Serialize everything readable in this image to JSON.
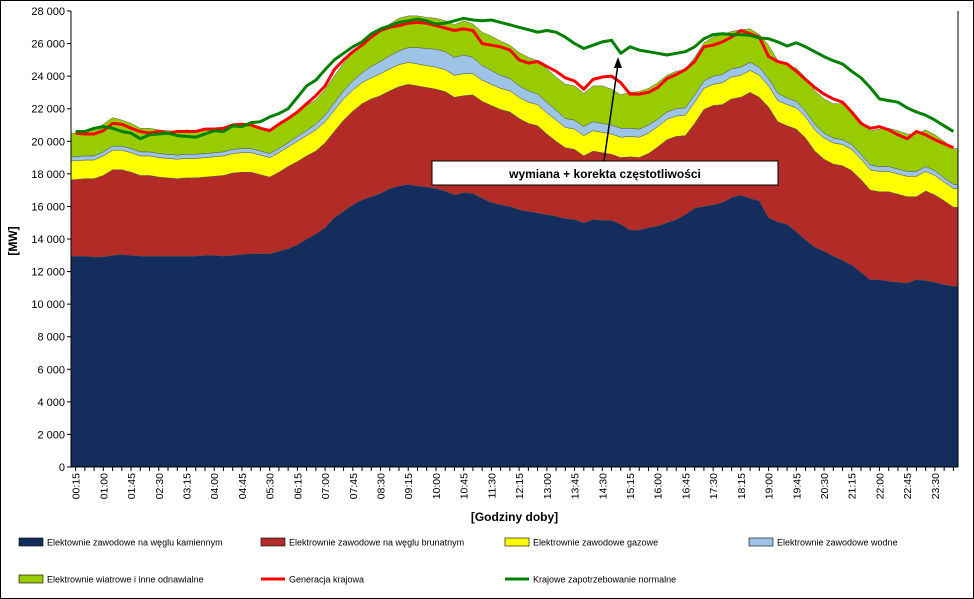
{
  "chart_data": {
    "type": "area",
    "xlabel": "[Godziny doby]",
    "ylabel": "[MW]",
    "ylim": [
      0,
      28000
    ],
    "yticks": [
      "0",
      "2 000",
      "4 000",
      "6 000",
      "8 000",
      "10 000",
      "12 000",
      "14 000",
      "16 000",
      "18 000",
      "20 000",
      "22 000",
      "24 000",
      "26 000",
      "28 000"
    ],
    "x": [
      "00:15",
      "00:30",
      "00:45",
      "01:00",
      "01:15",
      "01:30",
      "01:45",
      "02:00",
      "02:15",
      "02:30",
      "02:45",
      "03:00",
      "03:15",
      "03:30",
      "03:45",
      "04:00",
      "04:15",
      "04:30",
      "04:45",
      "05:00",
      "05:15",
      "05:30",
      "05:45",
      "06:00",
      "06:15",
      "06:30",
      "06:45",
      "07:00",
      "07:15",
      "07:30",
      "07:45",
      "08:00",
      "08:15",
      "08:30",
      "08:45",
      "09:00",
      "09:15",
      "09:30",
      "09:45",
      "10:00",
      "10:15",
      "10:30",
      "10:45",
      "11:00",
      "11:15",
      "11:30",
      "11:45",
      "12:00",
      "12:15",
      "12:30",
      "12:45",
      "13:00",
      "13:15",
      "13:30",
      "13:45",
      "14:00",
      "14:15",
      "14:30",
      "14:45",
      "15:00",
      "15:15",
      "15:30",
      "15:45",
      "16:00",
      "16:15",
      "16:30",
      "16:45",
      "17:00",
      "17:15",
      "17:30",
      "17:45",
      "18:00",
      "18:15",
      "18:30",
      "18:45",
      "19:00",
      "19:15",
      "19:30",
      "19:45",
      "20:00",
      "20:15",
      "20:30",
      "20:45",
      "21:00",
      "21:15",
      "21:30",
      "21:45",
      "22:00",
      "22:15",
      "22:30",
      "22:45",
      "23:00",
      "23:15",
      "23:30",
      "23:45",
      "24:00"
    ],
    "xticks_shown": [
      "00:15",
      "01:00",
      "01:45",
      "02:30",
      "03:15",
      "04:00",
      "04:45",
      "05:30",
      "06:15",
      "07:00",
      "07:45",
      "08:30",
      "09:15",
      "10:00",
      "10:45",
      "11:30",
      "12:15",
      "13:00",
      "13:45",
      "14:30",
      "15:15",
      "16:00",
      "16:45",
      "17:30",
      "18:15",
      "19:00",
      "19:45",
      "20:30",
      "21:15",
      "22:00",
      "22:45",
      "23:30"
    ],
    "stacked_series": [
      {
        "name": "Elektownie zawodowe na węglu kamiennym",
        "color": "#142d5c",
        "values": [
          12950,
          12950,
          12900,
          12900,
          13000,
          13050,
          13000,
          12950,
          12950,
          12950,
          12950,
          12950,
          12950,
          12950,
          13000,
          13000,
          12950,
          13000,
          13050,
          13100,
          13100,
          13100,
          13250,
          13400,
          13650,
          14000,
          14300,
          14700,
          15300,
          15700,
          16100,
          16400,
          16600,
          16800,
          17100,
          17250,
          17350,
          17250,
          17200,
          17100,
          16950,
          16700,
          16850,
          16800,
          16500,
          16250,
          16100,
          16000,
          15800,
          15700,
          15600,
          15500,
          15400,
          15250,
          15200,
          15000,
          15200,
          15150,
          15150,
          14900,
          14550,
          14550,
          14700,
          14800,
          15000,
          15200,
          15500,
          15900,
          16000,
          16100,
          16250,
          16550,
          16700,
          16500,
          16350,
          15300,
          15050,
          14900,
          14450,
          13950,
          13500,
          13250,
          12950,
          12700,
          12400,
          11950,
          11500,
          11500,
          11400,
          11350,
          11300,
          11500,
          11450,
          11350,
          11200,
          11100
        ]
      },
      {
        "name": "Elektrownie zawodowe na węglu brunatnym",
        "color": "#b22b26",
        "values": [
          4700,
          4750,
          4800,
          5000,
          5250,
          5200,
          5100,
          4950,
          4950,
          4850,
          4800,
          4750,
          4800,
          4800,
          4800,
          4850,
          4950,
          5050,
          5050,
          5000,
          4850,
          4700,
          4850,
          5050,
          5100,
          5100,
          5100,
          5200,
          5300,
          5600,
          5750,
          5900,
          6000,
          6000,
          6000,
          6100,
          6150,
          6150,
          6100,
          6100,
          6100,
          6000,
          5950,
          6050,
          5950,
          5950,
          5850,
          5800,
          5600,
          5400,
          5350,
          4950,
          4600,
          4350,
          4300,
          4100,
          4200,
          4150,
          4050,
          4100,
          4500,
          4450,
          4550,
          4850,
          5100,
          5100,
          4850,
          5200,
          5950,
          6100,
          6000,
          6050,
          6000,
          6500,
          6350,
          6800,
          6150,
          6050,
          6300,
          6250,
          5900,
          5650,
          5650,
          5800,
          5800,
          5700,
          5500,
          5400,
          5500,
          5400,
          5300,
          5100,
          5500,
          5350,
          5150,
          4850
        ]
      },
      {
        "name": "Elektrownie zawodowe gazowe",
        "color": "#ffff00",
        "values": [
          1150,
          1150,
          1150,
          1200,
          1200,
          1200,
          1200,
          1200,
          1200,
          1200,
          1200,
          1200,
          1200,
          1200,
          1200,
          1200,
          1200,
          1200,
          1200,
          1200,
          1200,
          1200,
          1200,
          1200,
          1250,
          1250,
          1300,
          1300,
          1300,
          1300,
          1300,
          1300,
          1300,
          1350,
          1350,
          1350,
          1350,
          1350,
          1350,
          1350,
          1350,
          1350,
          1350,
          1300,
          1300,
          1300,
          1300,
          1300,
          1300,
          1300,
          1300,
          1300,
          1300,
          1250,
          1250,
          1250,
          1250,
          1250,
          1250,
          1250,
          1250,
          1250,
          1250,
          1250,
          1250,
          1250,
          1250,
          1300,
          1300,
          1300,
          1350,
          1350,
          1350,
          1350,
          1350,
          1300,
          1300,
          1300,
          1300,
          1300,
          1300,
          1300,
          1300,
          1300,
          1300,
          1250,
          1250,
          1250,
          1250,
          1250,
          1250,
          1250,
          1200,
          1200,
          1150,
          1150
        ]
      },
      {
        "name": "Elektrownie zawodowe wodne",
        "color": "#9dc3e6",
        "values": [
          250,
          250,
          250,
          250,
          250,
          250,
          250,
          250,
          250,
          250,
          250,
          250,
          250,
          250,
          250,
          250,
          250,
          250,
          250,
          250,
          250,
          250,
          250,
          250,
          300,
          300,
          350,
          400,
          450,
          500,
          550,
          600,
          700,
          750,
          800,
          850,
          900,
          1000,
          1050,
          1100,
          1100,
          1100,
          1150,
          1000,
          900,
          850,
          800,
          750,
          700,
          700,
          650,
          650,
          600,
          550,
          550,
          550,
          550,
          550,
          550,
          550,
          500,
          500,
          500,
          450,
          450,
          450,
          450,
          450,
          450,
          500,
          500,
          500,
          500,
          500,
          500,
          450,
          450,
          400,
          400,
          350,
          350,
          300,
          300,
          300,
          300,
          300,
          300,
          300,
          300,
          300,
          300,
          300,
          300,
          300,
          250,
          250
        ]
      },
      {
        "name": "Elektrownie wiatrowe i inne odnawialne",
        "color": "#99cc00",
        "values": [
          1450,
          1500,
          1600,
          1700,
          1750,
          1600,
          1550,
          1450,
          1450,
          1450,
          1450,
          1450,
          1500,
          1450,
          1450,
          1450,
          1500,
          1500,
          1500,
          1450,
          1450,
          1500,
          1500,
          1500,
          1500,
          1550,
          1500,
          1600,
          1650,
          1700,
          1750,
          1800,
          1900,
          1900,
          1950,
          2000,
          1950,
          1950,
          1900,
          1900,
          1900,
          2000,
          2100,
          2050,
          2050,
          2100,
          2100,
          2050,
          2050,
          2050,
          2050,
          2050,
          2050,
          2100,
          2100,
          2050,
          2200,
          2300,
          2200,
          2050,
          2200,
          2300,
          2250,
          2250,
          2250,
          2300,
          2350,
          2300,
          2350,
          2400,
          2450,
          2300,
          2300,
          2050,
          2000,
          2050,
          2000,
          2000,
          2050,
          2050,
          2050,
          2100,
          2100,
          2200,
          2100,
          2050,
          2100,
          2300,
          2350,
          2350,
          2300,
          2300,
          2250,
          2200,
          2250,
          2200
        ]
      }
    ],
    "line_series": [
      {
        "name": "Generacja krajowa",
        "color": "#ff0000",
        "values": [
          20500,
          20450,
          20450,
          20650,
          21100,
          21050,
          20800,
          20600,
          20500,
          20600,
          20500,
          20600,
          20600,
          20600,
          20750,
          20750,
          20800,
          21000,
          21050,
          21000,
          20800,
          20650,
          21050,
          21400,
          21800,
          22300,
          22800,
          23400,
          24400,
          25000,
          25500,
          25900,
          26400,
          26800,
          27000,
          27100,
          27250,
          27300,
          27250,
          27100,
          26950,
          26800,
          26900,
          26800,
          26000,
          25900,
          25800,
          25600,
          25000,
          24800,
          24900,
          24600,
          24300,
          23900,
          23700,
          23200,
          23800,
          23950,
          24000,
          23600,
          22900,
          22900,
          23000,
          23300,
          23850,
          24100,
          24400,
          24900,
          25800,
          25900,
          26100,
          26400,
          26800,
          26600,
          26400,
          25200,
          24900,
          24750,
          24300,
          23800,
          23300,
          22900,
          22600,
          22400,
          21800,
          21100,
          20800,
          20900,
          20700,
          20400,
          20150,
          20600,
          20400,
          20100,
          19850,
          19600
        ]
      },
      {
        "name": "Krajowe zapotrzebowanie normalne",
        "color": "#008000",
        "values": [
          20600,
          20600,
          20800,
          20900,
          20800,
          20600,
          20500,
          20150,
          20400,
          20450,
          20500,
          20350,
          20300,
          20250,
          20450,
          20650,
          20600,
          20950,
          20900,
          21150,
          21200,
          21500,
          21700,
          22000,
          22700,
          23400,
          23750,
          24400,
          25000,
          25400,
          25800,
          26100,
          26600,
          26900,
          27100,
          27300,
          27400,
          27500,
          27400,
          27200,
          27250,
          27400,
          27550,
          27450,
          27400,
          27450,
          27300,
          27150,
          27000,
          26850,
          26700,
          26800,
          26700,
          26400,
          26000,
          25700,
          25900,
          26100,
          26200,
          25400,
          25800,
          25600,
          25500,
          25400,
          25300,
          25400,
          25500,
          25800,
          26300,
          26550,
          26600,
          26550,
          26550,
          26500,
          26350,
          26300,
          26100,
          25850,
          26050,
          25800,
          25500,
          25200,
          24950,
          24750,
          24300,
          23900,
          23300,
          22600,
          22500,
          22400,
          22050,
          21800,
          21600,
          21300,
          20950,
          20600
        ]
      }
    ],
    "annotation": "wymiana + korekta częstotliwości",
    "legend": [
      "Elektownie zawodowe na węglu kamiennym",
      "Elektrownie zawodowe na węglu brunatnym",
      "Elektrownie zawodowe gazowe",
      "Elektrownie zawodowe wodne",
      "Elektrownie wiatrowe i inne odnawialne",
      "Generacja krajowa",
      "Krajowe zapotrzebowanie normalne"
    ],
    "legend_placement": "bottom",
    "grid": false
  }
}
